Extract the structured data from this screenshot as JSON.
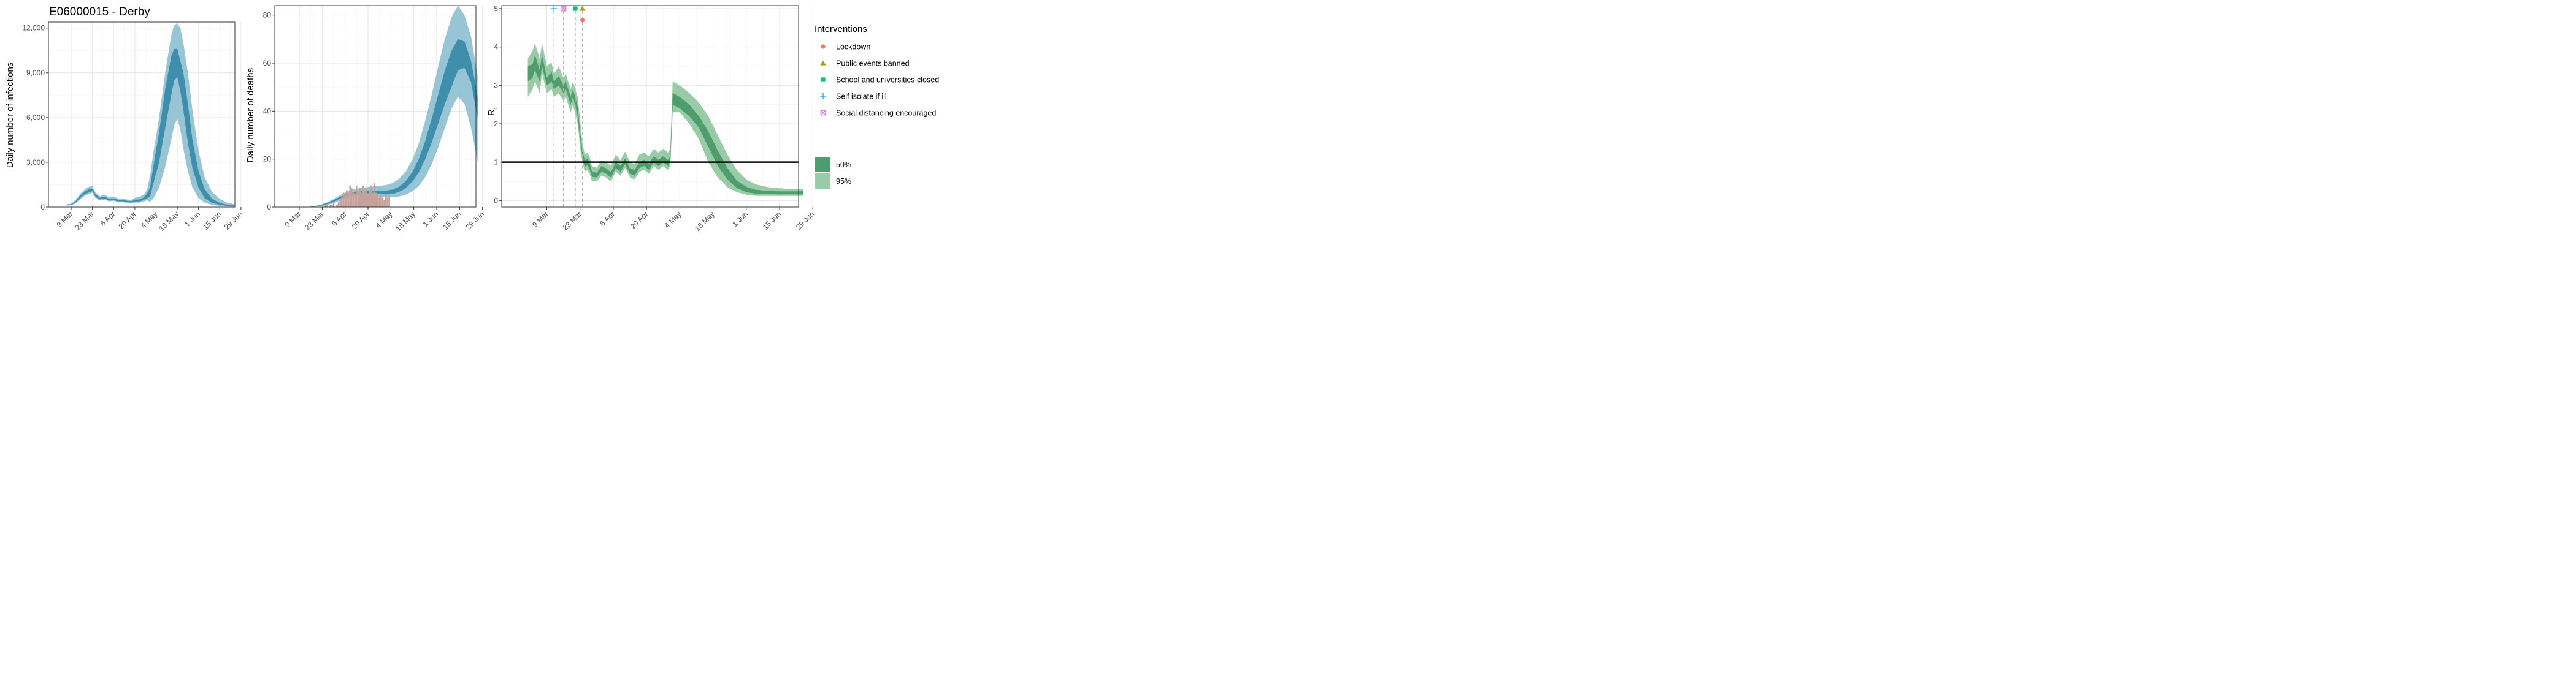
{
  "colors": {
    "blue_95": "#8dbfd0",
    "blue_50": "#3e8eac",
    "blue_line": "#2f7fa0",
    "green_95": "#99cba6",
    "green_50": "#4f9d6f",
    "deaths_bar": "#c4a29a",
    "lockdown": "#f8766d",
    "public_events": "#a3a500",
    "schools": "#00bf7d",
    "self_isolate": "#00b0f6",
    "social_distancing": "#e76bf3"
  },
  "chart_data": [
    {
      "type": "area",
      "title": "E06000015 - Derby",
      "xlabel": "",
      "ylabel": "Daily number of infections",
      "x_range_days": [
        -7,
        116
      ],
      "ylim": [
        0,
        12400
      ],
      "x_ticks": [
        "9 Mar",
        "23 Mar",
        "6 Apr",
        "20 Apr",
        "4 May",
        "18 May",
        "1 Jun",
        "15 Jun",
        "29 Jun"
      ],
      "y_ticks": [
        "0",
        "3,000",
        "6,000",
        "9,000",
        "12,000"
      ],
      "y_tick_values": [
        0,
        3000,
        6000,
        9000,
        12000
      ],
      "series": [
        {
          "x_dates": [
            "6 Mar",
            "9 Mar",
            "12 Mar",
            "15 Mar",
            "18 Mar",
            "21 Mar",
            "23 Mar",
            "25 Mar",
            "28 Mar",
            "31 Mar",
            "3 Apr",
            "6 Apr",
            "9 Apr",
            "12 Apr",
            "15 Apr",
            "18 Apr",
            "20 Apr",
            "23 Apr",
            "26 Apr",
            "28 Apr",
            "30 Apr",
            "2 May",
            "6 May",
            "10 May",
            "14 May",
            "16 May",
            "18 May",
            "20 May",
            "22 May",
            "25 May",
            "28 May",
            "1 Jun",
            "5 Jun",
            "10 Jun",
            "15 Jun",
            "20 Jun",
            "25 Jun"
          ],
          "lower95": [
            100,
            110,
            250,
            520,
            750,
            880,
            980,
            620,
            430,
            500,
            380,
            420,
            320,
            330,
            280,
            250,
            300,
            300,
            380,
            460,
            350,
            550,
            1300,
            2700,
            4500,
            5500,
            5900,
            5200,
            3900,
            2400,
            1300,
            600,
            300,
            140,
            80,
            40,
            25
          ],
          "lower50": [
            120,
            130,
            320,
            620,
            870,
            1000,
            1080,
            700,
            510,
            580,
            440,
            480,
            380,
            390,
            330,
            300,
            380,
            380,
            480,
            600,
            700,
            1500,
            3000,
            5300,
            7500,
            8500,
            8700,
            7800,
            6500,
            4300,
            2600,
            1300,
            600,
            280,
            150,
            80,
            50
          ],
          "median": [
            140,
            150,
            360,
            700,
            950,
            1100,
            1150,
            780,
            560,
            640,
            490,
            530,
            430,
            430,
            370,
            340,
            440,
            440,
            560,
            750,
            1000,
            2000,
            4000,
            6600,
            8900,
            9900,
            10200,
            9300,
            8000,
            5600,
            3400,
            1800,
            850,
            380,
            200,
            110,
            70
          ],
          "upper50": [
            160,
            180,
            400,
            780,
            1040,
            1200,
            1230,
            850,
            620,
            710,
            540,
            590,
            480,
            480,
            420,
            390,
            500,
            510,
            650,
            900,
            1300,
            2600,
            5000,
            7900,
            10100,
            10600,
            10600,
            9800,
            9000,
            6900,
            4500,
            2400,
            1200,
            550,
            280,
            150,
            90
          ],
          "upper95": [
            200,
            230,
            480,
            900,
            1200,
            1380,
            1400,
            980,
            730,
            840,
            650,
            700,
            580,
            580,
            510,
            490,
            620,
            680,
            850,
            1150,
            2100,
            3500,
            6000,
            9000,
            11500,
            12200,
            12300,
            12000,
            11000,
            9000,
            6500,
            3800,
            2000,
            1000,
            550,
            300,
            180
          ]
        }
      ]
    },
    {
      "type": "area",
      "title": "",
      "xlabel": "",
      "ylabel": "Daily number of deaths",
      "x_range_days": [
        -7,
        116
      ],
      "ylim": [
        0,
        84
      ],
      "x_ticks": [
        "9 Mar",
        "23 Mar",
        "6 Apr",
        "20 Apr",
        "4 May",
        "18 May",
        "1 Jun",
        "15 Jun",
        "29 Jun"
      ],
      "y_ticks": [
        "0",
        "20",
        "40",
        "60",
        "80"
      ],
      "y_tick_values": [
        0,
        20,
        40,
        60,
        80
      ],
      "series": [
        {
          "x_dates": [
            "6 Mar",
            "10 Mar",
            "14 Mar",
            "18 Mar",
            "22 Mar",
            "26 Mar",
            "30 Mar",
            "3 Apr",
            "7 Apr",
            "11 Apr",
            "15 Apr",
            "19 Apr",
            "23 Apr",
            "27 Apr",
            "1 May",
            "5 May",
            "9 May",
            "13 May",
            "17 May",
            "21 May",
            "25 May",
            "29 May",
            "2 Jun",
            "6 Jun",
            "10 Jun",
            "14 Jun",
            "18 Jun",
            "22 Jun",
            "26 Jun"
          ],
          "lower95": [
            0,
            0,
            0,
            0.1,
            0.3,
            0.8,
            1.6,
            2.8,
            3.8,
            4.5,
            4.8,
            4.8,
            4.6,
            4.3,
            4.1,
            4.1,
            4.4,
            5.2,
            6.5,
            8.8,
            12.5,
            18,
            25,
            33,
            41,
            46,
            43,
            33,
            19
          ],
          "lower50": [
            0,
            0,
            0,
            0.2,
            0.5,
            1.2,
            2.2,
            3.5,
            4.6,
            5.3,
            5.6,
            5.7,
            5.6,
            5.4,
            5.3,
            5.5,
            6.3,
            7.8,
            10.5,
            14.5,
            20,
            27,
            35,
            43,
            50,
            57,
            58,
            52,
            37
          ],
          "median": [
            0,
            0,
            0,
            0.2,
            0.6,
            1.4,
            2.5,
            3.8,
            5,
            5.7,
            6.1,
            6.2,
            6.1,
            6,
            5.9,
            6.2,
            7.2,
            9,
            12.2,
            17,
            23.5,
            31.5,
            40.5,
            49,
            56,
            62,
            63,
            55,
            40
          ],
          "upper50": [
            0,
            0,
            0,
            0.3,
            0.8,
            1.7,
            2.9,
            4.3,
            5.5,
            6.3,
            6.7,
            6.9,
            6.9,
            6.8,
            6.9,
            7.3,
            8.5,
            10.8,
            14.5,
            20,
            27.5,
            37,
            47,
            57,
            65,
            70,
            69,
            61,
            46
          ],
          "upper95": [
            0,
            0,
            0,
            0.4,
            1,
            2,
            3.4,
            5,
            6.4,
            7.3,
            7.9,
            8.3,
            8.6,
            8.8,
            9.2,
            10,
            11.8,
            14.8,
            19.5,
            26.5,
            36,
            47,
            59,
            70,
            79,
            84,
            80,
            71,
            55
          ]
        },
        {
          "name": "",
          "type": "bar",
          "x_dates": [
            "25 Mar",
            "26 Mar",
            "27 Mar",
            "28 Mar",
            "29 Mar",
            "30 Mar",
            "31 Mar",
            "1 Apr",
            "2 Apr",
            "3 Apr",
            "4 Apr",
            "5 Apr",
            "6 Apr",
            "7 Apr",
            "8 Apr",
            "9 Apr",
            "10 Apr",
            "11 Apr",
            "12 Apr",
            "13 Apr",
            "14 Apr",
            "15 Apr",
            "16 Apr",
            "17 Apr",
            "18 Apr",
            "19 Apr",
            "20 Apr",
            "21 Apr",
            "22 Apr",
            "23 Apr",
            "24 Apr",
            "25 Apr",
            "26 Apr",
            "27 Apr",
            "28 Apr",
            "29 Apr",
            "30 Apr",
            "1 May",
            "2 May",
            "3 May"
          ],
          "values": [
            1,
            1,
            0,
            1,
            1,
            2,
            0,
            1,
            2,
            3,
            4,
            6,
            5,
            7,
            6,
            9,
            8,
            6,
            5,
            9,
            7,
            8,
            6,
            9,
            7,
            8,
            5,
            7,
            9,
            6,
            10,
            6,
            5,
            4,
            5,
            4,
            3,
            5,
            4,
            5
          ]
        }
      ]
    },
    {
      "type": "area",
      "title": "",
      "xlabel": "",
      "ylabel": "R",
      "ylabel_sub": "t",
      "x_range_days": [
        -11,
        114
      ],
      "ylim": [
        -0.17,
        5.08
      ],
      "x_ticks": [
        "9 Mar",
        "23 Mar",
        "6 Apr",
        "20 Apr",
        "4 May",
        "18 May",
        "1 Jun",
        "15 Jun",
        "29 Jun"
      ],
      "y_ticks": [
        "0",
        "1",
        "2",
        "3",
        "4",
        "5"
      ],
      "y_tick_values": [
        0,
        1,
        2,
        3,
        4,
        5
      ],
      "reference_line_y": 1,
      "intervention_dates": [
        "12 Mar",
        "16 Mar",
        "21 Mar",
        "24 Mar"
      ],
      "markers": [
        {
          "name": "Self isolate if ill",
          "date": "12 Mar",
          "y": 5.0
        },
        {
          "name": "Social distancing encouraged",
          "date": "16 Mar",
          "y": 5.0
        },
        {
          "name": "School and universities closed",
          "date": "21 Mar",
          "y": 5.0
        },
        {
          "name": "Public events banned",
          "date": "24 Mar",
          "y": 5.0
        },
        {
          "name": "Lockdown",
          "date": "24 Mar",
          "y": 4.7
        }
      ],
      "series": [
        {
          "x_dates": [
            "1 Mar",
            "3 Mar",
            "4 Mar",
            "6 Mar",
            "7 Mar",
            "9 Mar",
            "11 Mar",
            "12 Mar",
            "14 Mar",
            "16 Mar",
            "17 Mar",
            "19 Mar",
            "20 Mar",
            "22 Mar",
            "23 Mar",
            "24 Mar",
            "25 Mar",
            "26 Mar",
            "27 Mar",
            "28 Mar",
            "30 Mar",
            "1 Apr",
            "3 Apr",
            "5 Apr",
            "7 Apr",
            "9 Apr",
            "11 Apr",
            "13 Apr",
            "15 Apr",
            "17 Apr",
            "19 Apr",
            "21 Apr",
            "23 Apr",
            "25 Apr",
            "27 Apr",
            "29 Apr",
            "30 Apr",
            "1 May",
            "4 May",
            "8 May",
            "12 May",
            "16 May",
            "20 May",
            "24 May",
            "28 May",
            "1 Jun",
            "5 Jun",
            "10 Jun",
            "15 Jun",
            "20 Jun",
            "25 Jun"
          ],
          "lower95": [
            2.7,
            2.9,
            3.1,
            2.8,
            3.3,
            2.8,
            2.9,
            2.7,
            2.8,
            2.6,
            2.7,
            2.3,
            2.5,
            2.0,
            1.4,
            1.0,
            0.75,
            0.8,
            0.7,
            0.5,
            0.5,
            0.65,
            0.6,
            0.5,
            0.75,
            0.65,
            0.85,
            0.6,
            0.55,
            0.75,
            0.8,
            0.7,
            0.9,
            0.8,
            0.9,
            0.8,
            0.9,
            2.3,
            2.3,
            2.0,
            1.6,
            1.0,
            0.6,
            0.35,
            0.22,
            0.15,
            0.12,
            0.12,
            0.12,
            0.12,
            0.12
          ],
          "lower50": [
            3.1,
            3.2,
            3.4,
            3.1,
            3.5,
            3.0,
            3.1,
            2.9,
            3.0,
            2.8,
            2.9,
            2.5,
            2.7,
            2.2,
            1.6,
            1.1,
            0.88,
            0.92,
            0.82,
            0.62,
            0.6,
            0.75,
            0.7,
            0.6,
            0.85,
            0.75,
            0.95,
            0.7,
            0.65,
            0.85,
            0.9,
            0.8,
            1.0,
            0.9,
            1.0,
            0.9,
            1.0,
            2.5,
            2.4,
            2.2,
            1.9,
            1.4,
            0.9,
            0.55,
            0.33,
            0.22,
            0.18,
            0.17,
            0.16,
            0.16,
            0.16
          ],
          "median": [
            3.3,
            3.35,
            3.6,
            3.25,
            3.6,
            3.1,
            3.2,
            3.0,
            3.1,
            2.9,
            3.0,
            2.6,
            2.8,
            2.3,
            1.7,
            1.2,
            0.95,
            1.0,
            0.9,
            0.68,
            0.66,
            0.82,
            0.76,
            0.66,
            0.92,
            0.82,
            1.02,
            0.76,
            0.72,
            0.92,
            0.98,
            0.88,
            1.08,
            0.98,
            1.08,
            0.98,
            1.08,
            2.6,
            2.5,
            2.3,
            2.0,
            1.55,
            1.05,
            0.65,
            0.4,
            0.27,
            0.22,
            0.2,
            0.2,
            0.2,
            0.2
          ],
          "upper50": [
            3.5,
            3.55,
            3.8,
            3.4,
            3.8,
            3.2,
            3.35,
            3.1,
            3.25,
            3.0,
            3.1,
            2.7,
            2.9,
            2.45,
            1.8,
            1.3,
            1.05,
            1.1,
            1.0,
            0.76,
            0.72,
            0.9,
            0.84,
            0.74,
            1.0,
            0.9,
            1.1,
            0.84,
            0.8,
            1.0,
            1.06,
            0.96,
            1.16,
            1.06,
            1.16,
            1.06,
            1.16,
            2.8,
            2.7,
            2.5,
            2.2,
            1.8,
            1.3,
            0.85,
            0.52,
            0.36,
            0.28,
            0.25,
            0.24,
            0.24,
            0.24
          ],
          "upper95": [
            3.7,
            3.9,
            4.1,
            3.7,
            4.1,
            3.5,
            3.6,
            3.3,
            3.5,
            3.2,
            3.3,
            2.9,
            3.1,
            2.7,
            2.1,
            1.5,
            1.2,
            1.25,
            1.15,
            0.9,
            0.85,
            1.05,
            1.0,
            0.9,
            1.2,
            1.05,
            1.28,
            1.0,
            0.95,
            1.2,
            1.25,
            1.15,
            1.35,
            1.25,
            1.35,
            1.25,
            1.35,
            3.1,
            3.0,
            2.8,
            2.55,
            2.2,
            1.7,
            1.2,
            0.8,
            0.55,
            0.42,
            0.35,
            0.32,
            0.3,
            0.3
          ]
        }
      ]
    }
  ],
  "legend": {
    "interventions_title": "Interventions",
    "interventions": [
      {
        "label": "Lockdown",
        "shape": "circle",
        "color_key": "lockdown"
      },
      {
        "label": "Public events banned",
        "shape": "triangle",
        "color_key": "public_events"
      },
      {
        "label": "School and universities closed",
        "shape": "square",
        "color_key": "schools"
      },
      {
        "label": "Self isolate if ill",
        "shape": "plus",
        "color_key": "self_isolate"
      },
      {
        "label": "Social distancing encouraged",
        "shape": "boxed-x",
        "color_key": "social_distancing"
      }
    ],
    "intervals": [
      {
        "label": "50%",
        "color_key": "green_50"
      },
      {
        "label": "95%",
        "color_key": "green_95"
      }
    ]
  }
}
